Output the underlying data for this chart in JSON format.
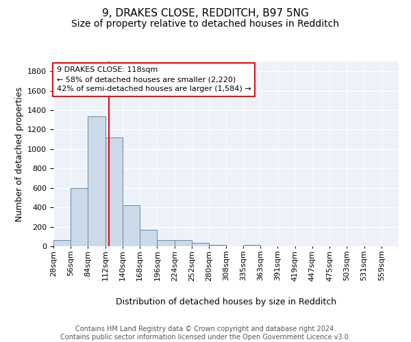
{
  "title1": "9, DRAKES CLOSE, REDDITCH, B97 5NG",
  "title2": "Size of property relative to detached houses in Redditch",
  "xlabel": "Distribution of detached houses by size in Redditch",
  "ylabel": "Number of detached properties",
  "bin_edges": [
    28,
    56,
    84,
    112,
    140,
    168,
    196,
    224,
    252,
    280,
    308,
    335,
    363,
    391,
    419,
    447,
    475,
    503,
    531,
    559,
    587
  ],
  "bar_heights": [
    60,
    600,
    1340,
    1120,
    420,
    170,
    65,
    65,
    35,
    15,
    0,
    15,
    0,
    0,
    0,
    0,
    0,
    0,
    0,
    0
  ],
  "bar_color": "#ccd9e8",
  "bar_edgecolor": "#5b8db8",
  "bg_color": "#eef2f8",
  "grid_color": "#ffffff",
  "vline_x": 118,
  "vline_color": "red",
  "annotation_text": "9 DRAKES CLOSE: 118sqm\n← 58% of detached houses are smaller (2,220)\n42% of semi-detached houses are larger (1,584) →",
  "annotation_box_color": "white",
  "annotation_box_edgecolor": "red",
  "ylim": [
    0,
    1900
  ],
  "yticks": [
    0,
    200,
    400,
    600,
    800,
    1000,
    1200,
    1400,
    1600,
    1800
  ],
  "footnote": "Contains HM Land Registry data © Crown copyright and database right 2024.\nContains public sector information licensed under the Open Government Licence v3.0.",
  "title1_fontsize": 11,
  "title2_fontsize": 10,
  "xlabel_fontsize": 9,
  "ylabel_fontsize": 9,
  "tick_fontsize": 8,
  "annotation_fontsize": 8,
  "footnote_fontsize": 7
}
